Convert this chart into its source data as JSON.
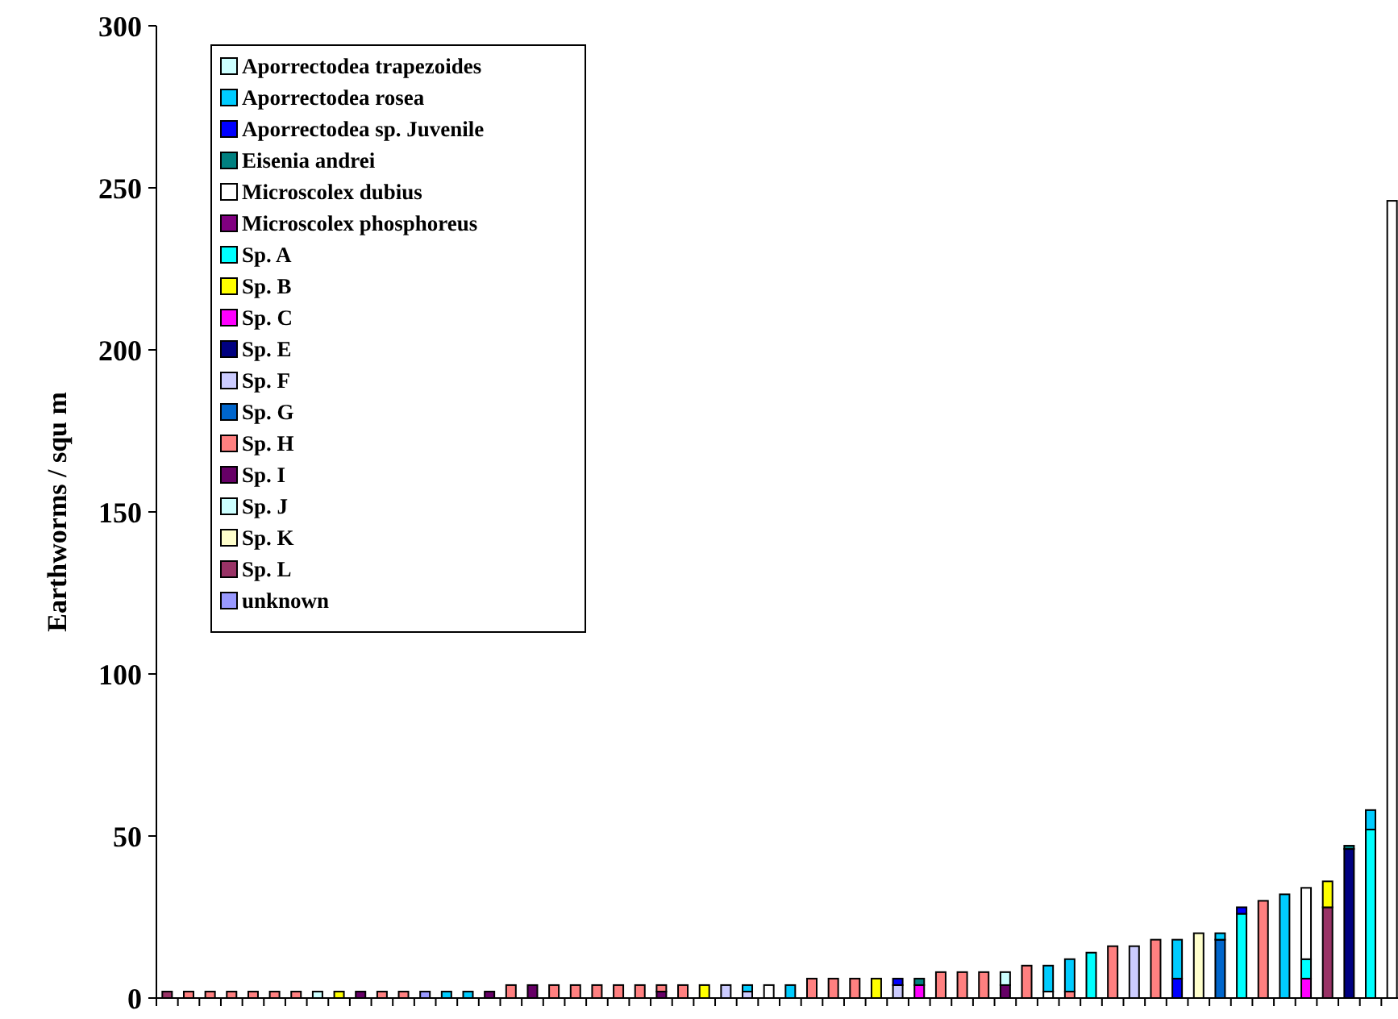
{
  "chart_data": {
    "type": "bar",
    "stacked": true,
    "ylabel": "Earthworms / squ m",
    "ylim": [
      0,
      300
    ],
    "yticks": [
      0,
      50,
      100,
      150,
      200,
      250,
      300
    ],
    "legend": "top left",
    "categories": [
      null,
      null,
      null,
      null,
      null,
      null,
      null,
      null,
      null,
      null,
      null,
      null,
      null,
      null,
      null,
      null,
      null,
      null,
      null,
      null,
      null,
      null,
      null,
      null,
      null,
      null,
      null,
      null,
      null,
      null,
      null,
      null,
      null,
      null,
      null,
      null,
      null,
      null,
      null,
      null,
      null,
      null,
      null,
      null,
      null,
      null,
      null,
      null,
      null,
      null,
      null,
      null,
      null,
      null,
      null,
      null,
      null,
      null
    ],
    "series": [
      {
        "name": "unknown",
        "color": "#9999ff",
        "values": [
          null,
          null,
          null,
          null,
          null,
          null,
          null,
          null,
          null,
          null,
          null,
          null,
          2,
          null,
          null,
          null,
          null,
          null,
          null,
          null,
          null,
          null,
          null,
          null,
          null,
          null,
          null,
          null,
          null,
          null,
          null,
          null,
          null,
          null,
          null,
          null,
          null,
          null,
          null,
          null,
          null,
          null,
          null,
          null,
          null,
          null,
          null,
          null,
          null,
          null,
          null,
          null,
          null,
          null,
          null,
          null,
          null,
          null
        ]
      },
      {
        "name": "Sp. L",
        "color": "#993366",
        "values": [
          2,
          null,
          null,
          null,
          null,
          null,
          null,
          null,
          null,
          null,
          null,
          null,
          null,
          null,
          null,
          null,
          null,
          null,
          null,
          null,
          null,
          null,
          null,
          null,
          null,
          null,
          null,
          null,
          null,
          null,
          null,
          null,
          null,
          null,
          null,
          null,
          null,
          null,
          null,
          null,
          null,
          null,
          null,
          null,
          null,
          null,
          null,
          null,
          null,
          null,
          null,
          null,
          null,
          null,
          28,
          null,
          null,
          null
        ]
      },
      {
        "name": "Sp. K",
        "color": "#ffffcc",
        "values": [
          null,
          null,
          null,
          null,
          null,
          null,
          null,
          null,
          null,
          null,
          null,
          null,
          null,
          null,
          null,
          null,
          null,
          null,
          null,
          null,
          null,
          null,
          null,
          null,
          null,
          null,
          null,
          null,
          null,
          null,
          null,
          null,
          null,
          null,
          null,
          null,
          null,
          null,
          null,
          null,
          null,
          null,
          null,
          null,
          null,
          null,
          null,
          null,
          20,
          null,
          null,
          null,
          null,
          null,
          null,
          null,
          null,
          null
        ]
      },
      {
        "name": "Sp. J",
        "color": "#ccffff",
        "values": [
          null,
          null,
          null,
          null,
          null,
          null,
          null,
          2,
          null,
          null,
          null,
          null,
          null,
          null,
          null,
          null,
          null,
          null,
          null,
          null,
          null,
          null,
          null,
          null,
          null,
          null,
          null,
          null,
          null,
          null,
          null,
          null,
          null,
          null,
          null,
          null,
          null,
          null,
          null,
          null,
          null,
          null,
          null,
          null,
          null,
          null,
          null,
          null,
          null,
          null,
          null,
          null,
          null,
          null,
          null,
          null,
          null,
          null
        ]
      },
      {
        "name": "Sp. I",
        "color": "#660066",
        "values": [
          null,
          null,
          null,
          null,
          null,
          null,
          null,
          null,
          null,
          2,
          null,
          null,
          null,
          null,
          null,
          2,
          null,
          4,
          null,
          null,
          null,
          null,
          null,
          2,
          null,
          null,
          null,
          null,
          null,
          null,
          null,
          null,
          null,
          null,
          null,
          null,
          null,
          null,
          null,
          4,
          null,
          null,
          null,
          null,
          null,
          null,
          null,
          null,
          null,
          null,
          null,
          null,
          null,
          null,
          null,
          null,
          null,
          null
        ]
      },
      {
        "name": "Sp. H",
        "color": "#ff8080",
        "values": [
          null,
          2,
          2,
          2,
          2,
          2,
          2,
          null,
          null,
          null,
          2,
          2,
          null,
          null,
          null,
          null,
          4,
          null,
          4,
          4,
          4,
          4,
          4,
          2,
          4,
          null,
          null,
          null,
          null,
          null,
          6,
          6,
          6,
          null,
          null,
          null,
          8,
          8,
          8,
          null,
          10,
          null,
          2,
          null,
          16,
          null,
          18,
          null,
          null,
          null,
          null,
          30,
          null,
          null,
          null,
          null,
          null,
          null
        ]
      },
      {
        "name": "Sp. G",
        "color": "#0066cc",
        "values": [
          null,
          null,
          null,
          null,
          null,
          null,
          null,
          null,
          null,
          null,
          null,
          null,
          null,
          null,
          null,
          null,
          null,
          null,
          null,
          null,
          null,
          null,
          null,
          null,
          null,
          null,
          null,
          null,
          null,
          null,
          null,
          null,
          null,
          null,
          null,
          null,
          null,
          null,
          null,
          null,
          null,
          null,
          null,
          null,
          null,
          null,
          null,
          null,
          null,
          18,
          null,
          null,
          null,
          null,
          null,
          null,
          null,
          null
        ]
      },
      {
        "name": "Sp. F",
        "color": "#ccccff",
        "values": [
          null,
          null,
          null,
          null,
          null,
          null,
          null,
          null,
          null,
          null,
          null,
          null,
          null,
          null,
          null,
          null,
          null,
          null,
          null,
          null,
          null,
          null,
          null,
          null,
          null,
          null,
          4,
          2,
          null,
          null,
          null,
          null,
          null,
          null,
          4,
          null,
          null,
          null,
          null,
          null,
          null,
          null,
          null,
          null,
          null,
          16,
          null,
          null,
          null,
          null,
          null,
          null,
          null,
          null,
          null,
          null,
          null,
          null
        ]
      },
      {
        "name": "Sp. E",
        "color": "#000080",
        "values": [
          null,
          null,
          null,
          null,
          null,
          null,
          null,
          null,
          null,
          null,
          null,
          null,
          null,
          null,
          null,
          null,
          null,
          null,
          null,
          null,
          null,
          null,
          null,
          null,
          null,
          null,
          null,
          null,
          null,
          null,
          null,
          null,
          null,
          null,
          null,
          null,
          null,
          null,
          null,
          null,
          null,
          null,
          null,
          null,
          null,
          null,
          null,
          null,
          null,
          null,
          null,
          null,
          null,
          null,
          null,
          46,
          null,
          null
        ]
      },
      {
        "name": "Sp. C",
        "color": "#ff00ff",
        "values": [
          null,
          null,
          null,
          null,
          null,
          null,
          null,
          null,
          null,
          null,
          null,
          null,
          null,
          null,
          null,
          null,
          null,
          null,
          null,
          null,
          null,
          null,
          null,
          null,
          null,
          null,
          null,
          null,
          null,
          null,
          null,
          null,
          null,
          null,
          null,
          4,
          null,
          null,
          null,
          null,
          null,
          null,
          null,
          null,
          null,
          null,
          null,
          null,
          null,
          null,
          null,
          null,
          null,
          6,
          null,
          null,
          null,
          null
        ]
      },
      {
        "name": "Sp. B",
        "color": "#ffff00",
        "values": [
          null,
          null,
          null,
          null,
          null,
          null,
          null,
          null,
          2,
          null,
          null,
          null,
          null,
          null,
          null,
          null,
          null,
          null,
          null,
          null,
          null,
          null,
          null,
          null,
          null,
          4,
          null,
          null,
          null,
          null,
          null,
          null,
          null,
          6,
          null,
          null,
          null,
          null,
          null,
          null,
          null,
          null,
          null,
          null,
          null,
          null,
          null,
          null,
          null,
          null,
          null,
          null,
          null,
          null,
          8,
          null,
          null,
          null
        ]
      },
      {
        "name": "Sp. A",
        "color": "#00ffff",
        "values": [
          null,
          null,
          null,
          null,
          null,
          null,
          null,
          null,
          null,
          null,
          null,
          null,
          null,
          null,
          null,
          null,
          null,
          null,
          null,
          null,
          null,
          null,
          null,
          null,
          null,
          null,
          null,
          null,
          null,
          null,
          null,
          null,
          null,
          null,
          null,
          null,
          null,
          null,
          null,
          null,
          null,
          null,
          null,
          14,
          null,
          null,
          null,
          null,
          null,
          null,
          26,
          null,
          null,
          6,
          null,
          null,
          52,
          null
        ]
      },
      {
        "name": "Microscolex phosphoreus",
        "color": "#800080",
        "values": [
          null,
          null,
          null,
          null,
          null,
          null,
          null,
          null,
          null,
          null,
          null,
          null,
          null,
          null,
          null,
          null,
          null,
          null,
          null,
          null,
          null,
          null,
          null,
          null,
          null,
          null,
          null,
          null,
          null,
          null,
          null,
          null,
          null,
          null,
          null,
          null,
          null,
          null,
          null,
          null,
          null,
          null,
          null,
          null,
          null,
          null,
          null,
          null,
          null,
          null,
          null,
          null,
          null,
          null,
          null,
          null,
          null,
          null
        ]
      },
      {
        "name": "Microscolex dubius",
        "color": "#ffffff",
        "values": [
          null,
          null,
          null,
          null,
          null,
          null,
          null,
          null,
          null,
          null,
          null,
          null,
          null,
          null,
          null,
          null,
          null,
          null,
          null,
          null,
          null,
          null,
          null,
          null,
          null,
          null,
          null,
          null,
          4,
          null,
          null,
          null,
          null,
          null,
          null,
          null,
          null,
          null,
          null,
          null,
          null,
          2,
          null,
          null,
          null,
          null,
          null,
          null,
          null,
          null,
          null,
          null,
          null,
          22,
          null,
          null,
          null,
          246
        ]
      },
      {
        "name": "Eisenia andrei",
        "color": "#008080",
        "values": [
          null,
          null,
          null,
          null,
          null,
          null,
          null,
          null,
          null,
          null,
          null,
          null,
          null,
          null,
          null,
          null,
          null,
          null,
          null,
          null,
          null,
          null,
          null,
          null,
          null,
          null,
          null,
          null,
          null,
          null,
          null,
          null,
          null,
          null,
          null,
          2,
          null,
          null,
          null,
          null,
          null,
          null,
          null,
          null,
          null,
          null,
          null,
          null,
          null,
          null,
          null,
          null,
          null,
          null,
          null,
          1,
          null,
          null
        ]
      },
      {
        "name": "Aporrectodea sp. Juvenile",
        "color": "#0000ff",
        "values": [
          null,
          null,
          null,
          null,
          null,
          null,
          null,
          null,
          null,
          null,
          null,
          null,
          null,
          null,
          null,
          null,
          null,
          null,
          null,
          null,
          null,
          null,
          null,
          null,
          null,
          null,
          null,
          null,
          null,
          null,
          null,
          null,
          null,
          null,
          2,
          null,
          null,
          null,
          null,
          null,
          null,
          null,
          null,
          null,
          null,
          null,
          null,
          6,
          null,
          null,
          2,
          null,
          null,
          null,
          null,
          null,
          null,
          null
        ]
      },
      {
        "name": "Aporrectodea rosea",
        "color": "#00ccff",
        "values": [
          null,
          null,
          null,
          null,
          null,
          null,
          null,
          null,
          null,
          null,
          null,
          null,
          null,
          2,
          2,
          null,
          null,
          null,
          null,
          null,
          null,
          null,
          null,
          null,
          null,
          null,
          null,
          2,
          null,
          4,
          null,
          null,
          null,
          null,
          null,
          null,
          null,
          null,
          null,
          null,
          null,
          8,
          10,
          null,
          null,
          null,
          null,
          12,
          null,
          2,
          null,
          null,
          32,
          null,
          null,
          null,
          6,
          null
        ]
      },
      {
        "name": "Aporrectodea trapezoides",
        "color": "#ccffff",
        "values": [
          null,
          null,
          null,
          null,
          null,
          null,
          null,
          null,
          null,
          null,
          null,
          null,
          null,
          null,
          null,
          null,
          null,
          null,
          null,
          null,
          null,
          null,
          null,
          null,
          null,
          null,
          null,
          null,
          null,
          null,
          null,
          null,
          null,
          null,
          null,
          null,
          null,
          null,
          null,
          4,
          null,
          null,
          null,
          null,
          null,
          null,
          null,
          null,
          null,
          null,
          null,
          null,
          null,
          null,
          null,
          null,
          null,
          null
        ]
      }
    ]
  }
}
